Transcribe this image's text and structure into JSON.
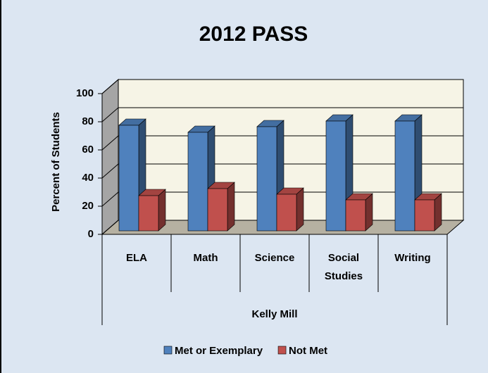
{
  "chart_data": {
    "type": "bar",
    "title": "2012 PASS",
    "ylabel": "Percent of Students",
    "categories": [
      "ELA",
      "Math",
      "Science",
      "Social Studies",
      "Writing"
    ],
    "group_label": "Kelly Mill",
    "series": [
      {
        "name": "Met or Exemplary",
        "color": "#4f81bd",
        "values": [
          75,
          70,
          74,
          78,
          78
        ]
      },
      {
        "name": "Not Met",
        "color": "#c0504d",
        "values": [
          25,
          30,
          26,
          22,
          22
        ]
      }
    ],
    "ylim": [
      0,
      100
    ],
    "yticks": [
      0,
      20,
      40,
      60,
      80,
      100
    ],
    "grid": true,
    "legend": "bottom"
  }
}
